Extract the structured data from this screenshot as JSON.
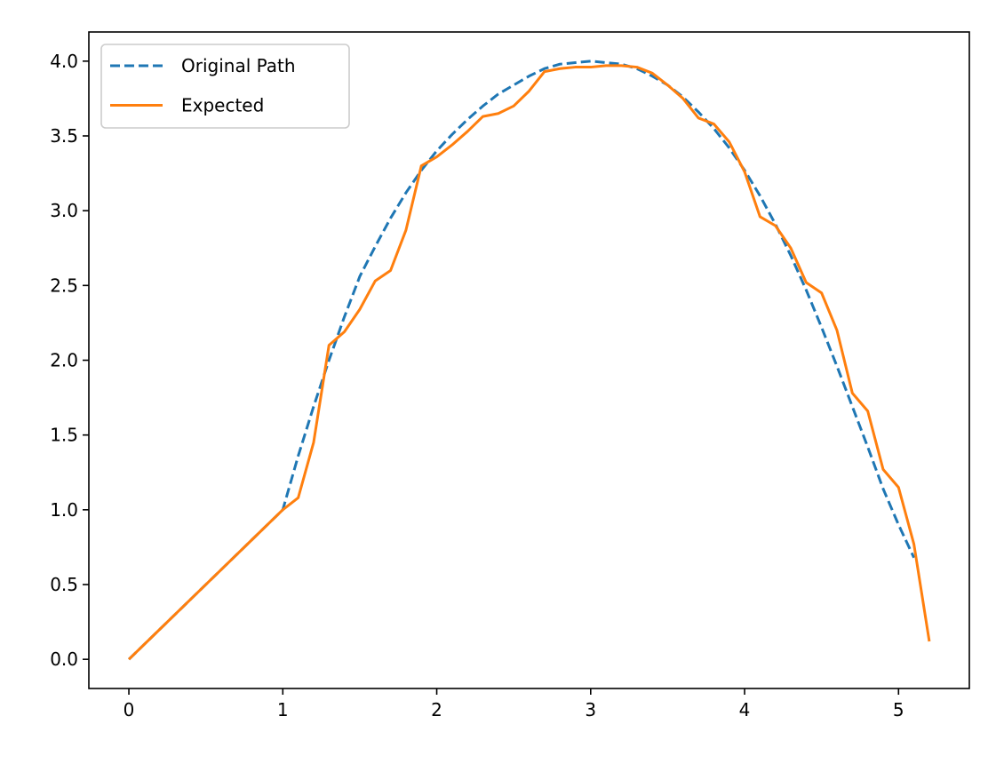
{
  "chart_data": {
    "type": "line",
    "title": "",
    "xlabel": "",
    "ylabel": "",
    "xlim": [
      -0.26,
      5.46
    ],
    "ylim": [
      -0.195,
      4.195
    ],
    "xticks": [
      0,
      1,
      2,
      3,
      4,
      5
    ],
    "xtick_labels": [
      "0",
      "1",
      "2",
      "3",
      "4",
      "5"
    ],
    "yticks": [
      0.0,
      0.5,
      1.0,
      1.5,
      2.0,
      2.5,
      3.0,
      3.5,
      4.0
    ],
    "ytick_labels": [
      "0.0",
      "0.5",
      "1.0",
      "1.5",
      "2.0",
      "2.5",
      "3.0",
      "3.5",
      "4.0"
    ],
    "grid": false,
    "legend_position": "top-left",
    "series": [
      {
        "name": "Original Path",
        "color": "#1f77b4",
        "style": "dashed",
        "x": [
          0,
          0.2,
          0.4,
          0.6,
          0.8,
          1.0,
          1.1,
          1.2,
          1.3,
          1.4,
          1.5,
          1.6,
          1.7,
          1.8,
          1.9,
          2.0,
          2.1,
          2.2,
          2.3,
          2.4,
          2.5,
          2.6,
          2.7,
          2.8,
          2.9,
          3.0,
          3.1,
          3.2,
          3.3,
          3.4,
          3.5,
          3.6,
          3.7,
          3.8,
          3.9,
          4.0,
          4.1,
          4.2,
          4.3,
          4.4,
          4.5,
          4.6,
          4.7,
          4.8,
          4.9,
          5.0,
          5.1
        ],
        "y": [
          0,
          0.2,
          0.4,
          0.6,
          0.8,
          1.0,
          1.36,
          1.69,
          2.0,
          2.29,
          2.56,
          2.76,
          2.95,
          3.12,
          3.27,
          3.4,
          3.51,
          3.61,
          3.7,
          3.78,
          3.84,
          3.9,
          3.95,
          3.98,
          3.99,
          4.0,
          3.99,
          3.98,
          3.95,
          3.9,
          3.84,
          3.76,
          3.66,
          3.55,
          3.42,
          3.27,
          3.1,
          2.91,
          2.7,
          2.47,
          2.22,
          1.96,
          1.69,
          1.42,
          1.14,
          0.9,
          0.68
        ]
      },
      {
        "name": "Expected",
        "color": "#ff7f0e",
        "style": "solid",
        "x": [
          0,
          0.2,
          0.4,
          0.6,
          0.8,
          1.0,
          1.1,
          1.2,
          1.3,
          1.4,
          1.5,
          1.6,
          1.7,
          1.8,
          1.9,
          2.0,
          2.1,
          2.2,
          2.3,
          2.4,
          2.5,
          2.6,
          2.7,
          2.8,
          2.9,
          3.0,
          3.1,
          3.2,
          3.3,
          3.4,
          3.5,
          3.6,
          3.7,
          3.8,
          3.9,
          4.0,
          4.1,
          4.2,
          4.3,
          4.4,
          4.5,
          4.6,
          4.7,
          4.8,
          4.9,
          5.0,
          5.1,
          5.2
        ],
        "y": [
          0,
          0.2,
          0.4,
          0.6,
          0.8,
          1.0,
          1.08,
          1.45,
          2.1,
          2.19,
          2.34,
          2.53,
          2.6,
          2.87,
          3.3,
          3.36,
          3.44,
          3.53,
          3.63,
          3.65,
          3.7,
          3.8,
          3.93,
          3.95,
          3.96,
          3.96,
          3.97,
          3.97,
          3.96,
          3.92,
          3.84,
          3.75,
          3.62,
          3.58,
          3.46,
          3.26,
          2.96,
          2.9,
          2.75,
          2.52,
          2.45,
          2.2,
          1.78,
          1.66,
          1.27,
          1.15,
          0.77,
          0.12
        ]
      }
    ]
  }
}
